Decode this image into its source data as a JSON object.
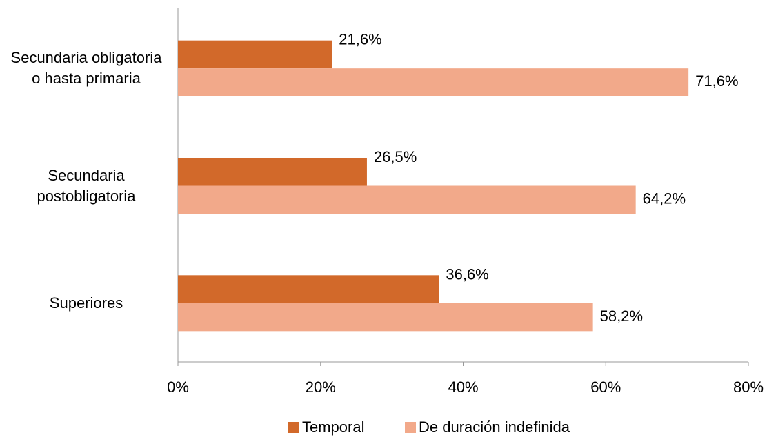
{
  "chart_data": {
    "type": "barh",
    "categories": [
      "Secundaria obligatoria o hasta primaria",
      "Secundaria postobligatoria",
      "Superiores"
    ],
    "series": [
      {
        "name": "Temporal",
        "color": "#d2692a",
        "values": [
          21.6,
          26.5,
          36.6
        ],
        "value_labels": [
          "21,6%",
          "26,5%",
          "36,6%"
        ]
      },
      {
        "name": "De duración indefinida",
        "color": "#f2a98a",
        "values": [
          71.6,
          64.2,
          58.2
        ],
        "value_labels": [
          "71,6%",
          "64,2%",
          "58,2%"
        ]
      }
    ],
    "xlim": [
      0,
      80
    ],
    "xticks": [
      {
        "value": 0,
        "label": "0%"
      },
      {
        "value": 20,
        "label": "20%"
      },
      {
        "value": 40,
        "label": "40%"
      },
      {
        "value": 60,
        "label": "60%"
      },
      {
        "value": 80,
        "label": "80%"
      }
    ],
    "legend": "bottom"
  }
}
